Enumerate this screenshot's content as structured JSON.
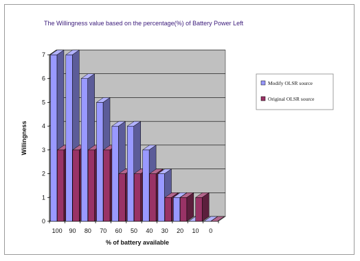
{
  "chart_data": {
    "type": "bar",
    "title": "The Willingness value based on the percentage(%) of Battery Power Left",
    "xlabel": "% of battery available",
    "ylabel": "Willingness",
    "categories": [
      "100",
      "90",
      "80",
      "70",
      "60",
      "50",
      "40",
      "30",
      "20",
      "10",
      "0"
    ],
    "ylim": [
      0,
      7
    ],
    "yticks": [
      "0",
      "1",
      "2",
      "3",
      "4",
      "5",
      "6",
      "7"
    ],
    "grid": true,
    "legend_position": "right",
    "series": [
      {
        "name": "Modify OLSR source",
        "values": [
          7,
          7,
          6,
          5,
          4,
          4,
          3,
          2,
          1,
          0,
          0
        ],
        "color": "#9999ff"
      },
      {
        "name": "Original OLSR source",
        "values": [
          3,
          3,
          3,
          3,
          2,
          2,
          2,
          1,
          1,
          1,
          0
        ],
        "color": "#993366"
      }
    ],
    "plot_background": "#c0c0c0"
  }
}
